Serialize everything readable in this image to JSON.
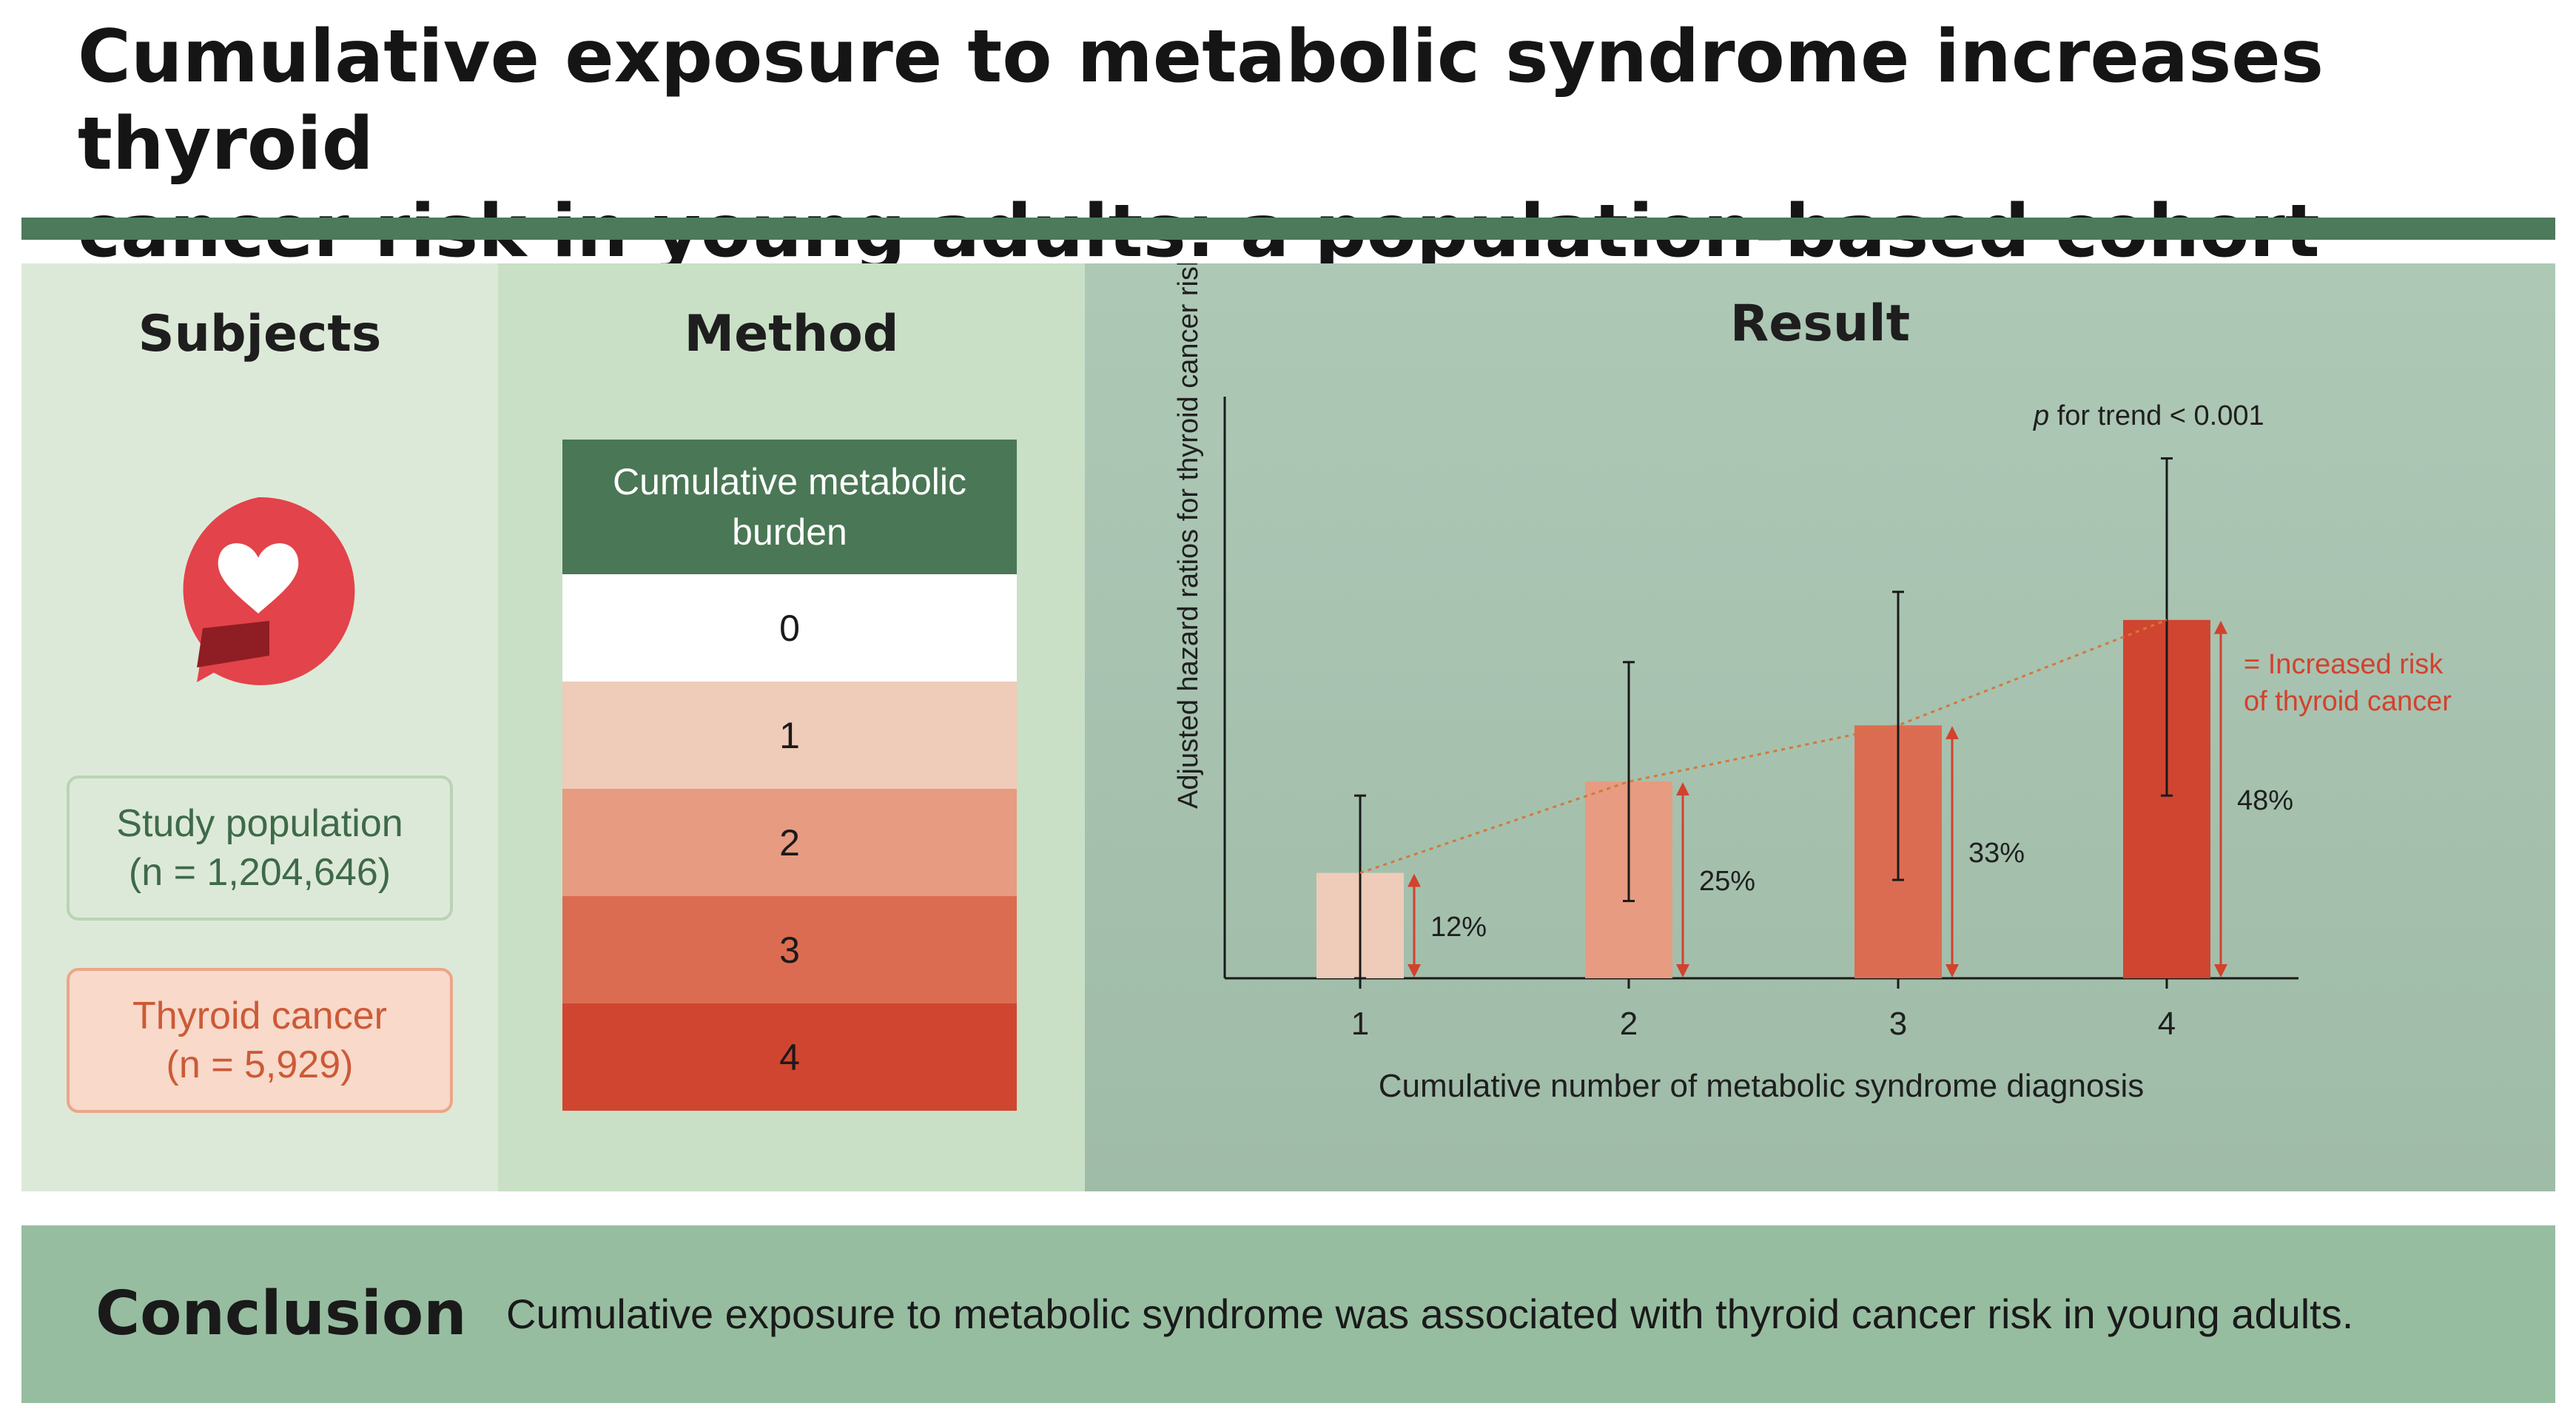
{
  "title": {
    "line1": "Cumulative exposure to metabolic syndrome increases thyroid",
    "line2": "cancer risk in young adults: a population-based cohort study"
  },
  "colors": {
    "accent_green": "#4c7a5a",
    "level0": "#ffffff",
    "level1": "#efcbb9",
    "level2": "#e79b80",
    "level3": "#db6c52",
    "level4": "#d04530",
    "arrow": "#d2422d"
  },
  "subjects": {
    "heading": "Subjects",
    "logo_icon": "heart-speech-bubble-icon",
    "study_population_label": "Study population",
    "study_population_n": "(n = 1,204,646)",
    "thyroid_cancer_label": "Thyroid cancer",
    "thyroid_cancer_n": "(n = 5,929)"
  },
  "method": {
    "heading": "Method",
    "table_header": "Cumulative metabolic burden",
    "levels": [
      "0",
      "1",
      "2",
      "3",
      "4"
    ]
  },
  "result": {
    "heading": "Result",
    "p_italic": "p",
    "p_rest": " for trend < 0.001",
    "legend_line1": "= Increased risk",
    "legend_line2": "of thyroid cancer"
  },
  "chart_data": {
    "type": "bar",
    "title": "Result",
    "xlabel": "Cumulative number of metabolic syndrome diagnosis",
    "ylabel": "Adjusted hazard ratios for thyroid cancer risk",
    "categories": [
      "1",
      "2",
      "3",
      "4"
    ],
    "values": [
      1.12,
      1.25,
      1.33,
      1.48
    ],
    "ci_lower": [
      0.97,
      1.08,
      1.11,
      1.23
    ],
    "ci_upper": [
      1.23,
      1.42,
      1.52,
      1.71
    ],
    "increase_labels": [
      "12%",
      "25%",
      "33%",
      "48%"
    ],
    "ylim": [
      0.97,
      1.8
    ],
    "trend_line": "dotted",
    "annotation": "p for trend < 0.001",
    "legend_placement": "right"
  },
  "conclusion": {
    "label": "Conclusion",
    "text": "Cumulative exposure to metabolic syndrome was associated with thyroid cancer risk in young adults."
  }
}
